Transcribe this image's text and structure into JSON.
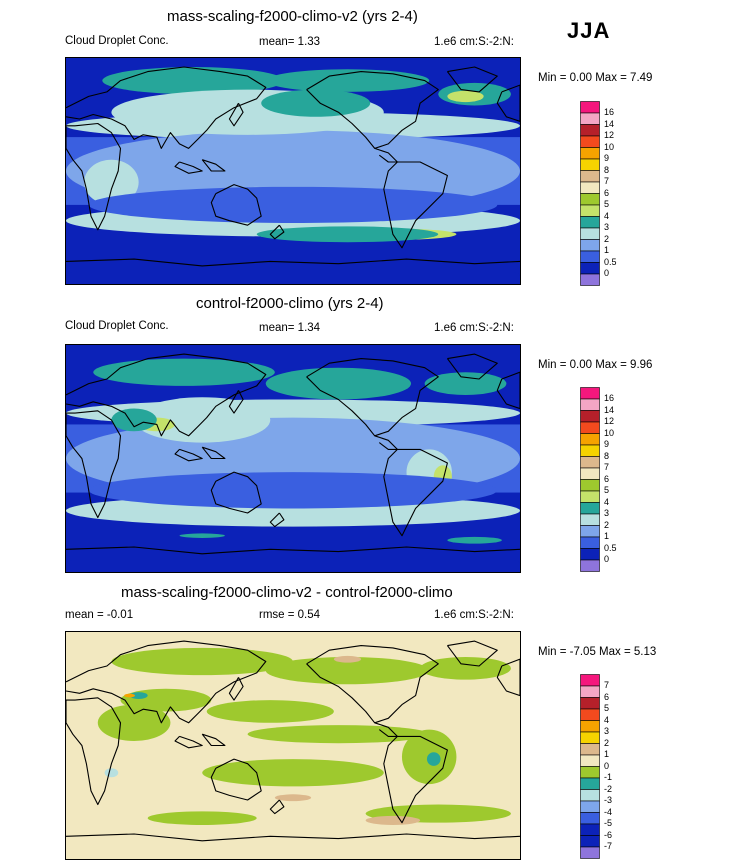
{
  "season": "JJA",
  "panels": [
    {
      "title": "mass-scaling-f2000-climo-v2 (yrs 2-4)",
      "left": "Cloud Droplet Conc.",
      "mid": "mean=   1.33",
      "right": "1.e6 cm:S:-2:N:",
      "minmax": "Min =   0.00 Max =   7.49",
      "levels": [
        "16",
        "14",
        "12",
        "10",
        "9",
        "8",
        "7",
        "6",
        "5",
        "4",
        "3",
        "2",
        "1",
        "0.5",
        "0"
      ],
      "colors": [
        "#f5177d",
        "#f4a6c4",
        "#b5202a",
        "#f24a1e",
        "#f6a300",
        "#f6d300",
        "#dcb88c",
        "#f2e8c0",
        "#9ec92e",
        "#c4e26a",
        "#26a69a",
        "#b7e0e0",
        "#7ea6ea",
        "#3a5fe0",
        "#0c22b8",
        "#8e74dc"
      ],
      "pattern": "cdnc1"
    },
    {
      "title": "control-f2000-climo (yrs 2-4)",
      "left": "Cloud Droplet Conc.",
      "mid": "mean=   1.34",
      "right": "1.e6 cm:S:-2:N:",
      "minmax": "Min =   0.00 Max =   9.96",
      "levels": [
        "16",
        "14",
        "12",
        "10",
        "9",
        "8",
        "7",
        "6",
        "5",
        "4",
        "3",
        "2",
        "1",
        "0.5",
        "0"
      ],
      "colors": [
        "#f5177d",
        "#f4a6c4",
        "#b5202a",
        "#f24a1e",
        "#f6a300",
        "#f6d300",
        "#dcb88c",
        "#f2e8c0",
        "#9ec92e",
        "#c4e26a",
        "#26a69a",
        "#b7e0e0",
        "#7ea6ea",
        "#3a5fe0",
        "#0c22b8",
        "#8e74dc"
      ],
      "pattern": "cdnc2"
    },
    {
      "title": "mass-scaling-f2000-climo-v2 - control-f2000-climo",
      "left": "mean =  -0.01",
      "mid": "rmse =   0.54",
      "right": "1.e6 cm:S:-2:N:",
      "minmax": "Min =  -7.05 Max =   5.13",
      "levels": [
        "7",
        "6",
        "5",
        "4",
        "3",
        "2",
        "1",
        "0",
        "-1",
        "-2",
        "-3",
        "-4",
        "-5",
        "-6",
        "-7"
      ],
      "colors": [
        "#f5177d",
        "#f4a6c4",
        "#b5202a",
        "#f24a1e",
        "#f6a300",
        "#f6d300",
        "#dcb88c",
        "#f2e8c0",
        "#9ec92e",
        "#26a69a",
        "#b7e0e0",
        "#7ea6ea",
        "#3a5fe0",
        "#0c22b8",
        "#0c22b8",
        "#8e74dc"
      ],
      "pattern": "diff"
    }
  ],
  "chart_data": {
    "type": "heatmap",
    "description_variable": "Cloud Droplet Conc.",
    "units": "1.e6 cm:S:-2:N:",
    "season": "JJA",
    "maps": [
      {
        "name": "mass-scaling-f2000-climo-v2 (yrs 2-4)",
        "mean": 1.33,
        "min": 0.0,
        "max": 7.49
      },
      {
        "name": "control-f2000-climo (yrs 2-4)",
        "mean": 1.34,
        "min": 0.0,
        "max": 9.96
      },
      {
        "name": "mass-scaling-f2000-climo-v2 - control-f2000-climo",
        "mean": -0.01,
        "rmse": 0.54,
        "min": -7.05,
        "max": 5.13
      }
    ]
  }
}
